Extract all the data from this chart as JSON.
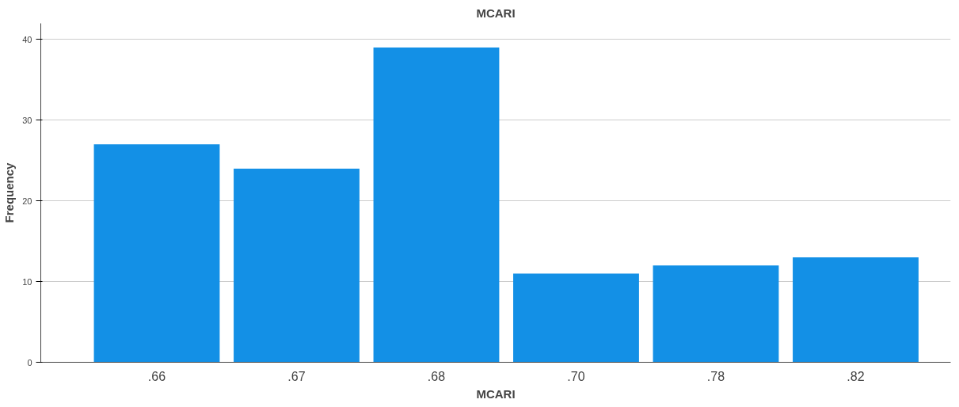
{
  "chart_data": {
    "type": "bar",
    "title": "MCARI",
    "xlabel": "MCARI",
    "ylabel": "Frequency",
    "categories": [
      ".66",
      ".67",
      ".68",
      ".70",
      ".78",
      ".82"
    ],
    "values": [
      27,
      24,
      39,
      11,
      12,
      13
    ],
    "color": "#1390e6",
    "ylim": [
      0,
      42
    ],
    "yticks": [
      0,
      10,
      20,
      30,
      40
    ],
    "grid": "y"
  }
}
